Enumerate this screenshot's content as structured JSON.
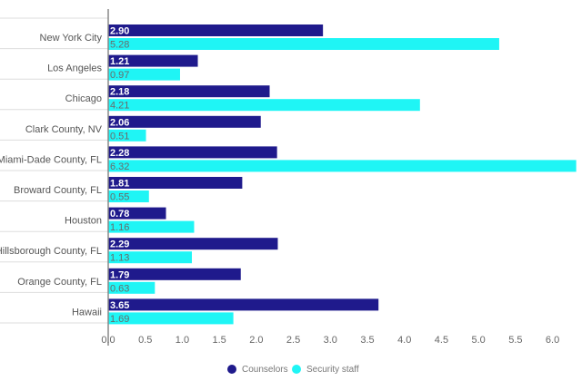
{
  "chart_data": {
    "type": "bar",
    "orientation": "horizontal",
    "categories": [
      "New York City",
      "Los Angeles",
      "Chicago",
      "Clark County, NV",
      "Miami-Dade County, FL",
      "Broward County, FL",
      "Houston",
      "Hillsborough County, FL",
      "Orange County, FL",
      "Hawaii"
    ],
    "series": [
      {
        "name": "Counselors",
        "color": "#1f1a8c",
        "values": [
          2.9,
          1.21,
          2.18,
          2.06,
          2.28,
          1.81,
          0.78,
          2.29,
          1.79,
          3.65
        ]
      },
      {
        "name": "Security staff",
        "color": "#1ff5f5",
        "values": [
          5.28,
          0.97,
          4.21,
          0.51,
          6.32,
          0.55,
          1.16,
          1.13,
          0.63,
          1.69
        ]
      }
    ],
    "xlim": [
      0.0,
      6.3
    ],
    "ticks": [
      "0.0",
      "0.5",
      "1.0",
      "1.5",
      "2.0",
      "2.5",
      "3.0",
      "3.5",
      "4.0",
      "4.5",
      "5.0",
      "5.5",
      "6.0"
    ],
    "title": "",
    "xlabel": "",
    "ylabel": "",
    "legend_position": "bottom-center",
    "grid": false
  }
}
